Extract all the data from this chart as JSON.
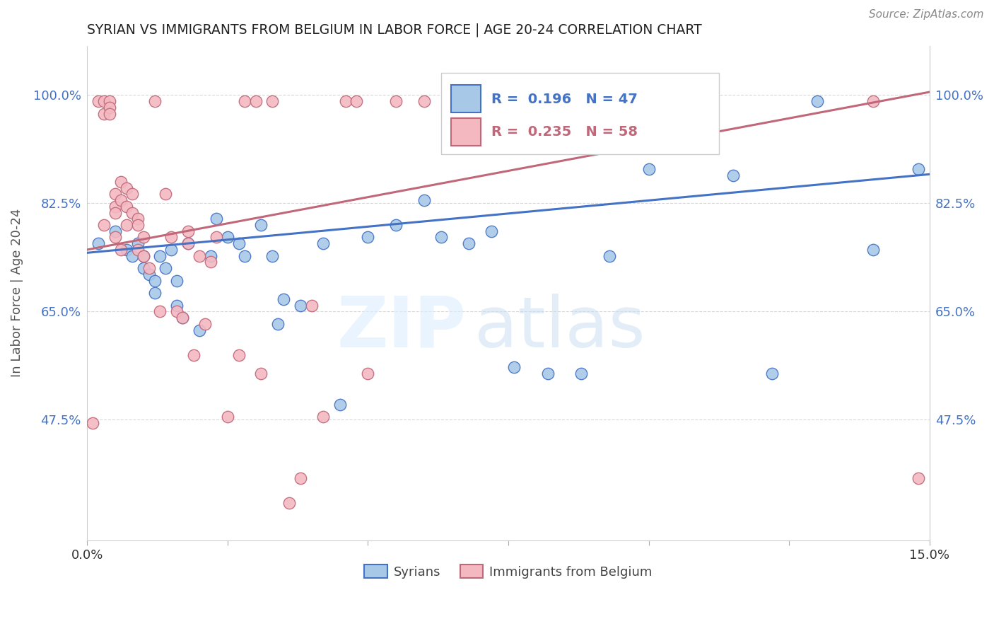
{
  "title": "SYRIAN VS IMMIGRANTS FROM BELGIUM IN LABOR FORCE | AGE 20-24 CORRELATION CHART",
  "source": "Source: ZipAtlas.com",
  "ylabel": "In Labor Force | Age 20-24",
  "xlim": [
    0.0,
    0.15
  ],
  "ylim": [
    0.28,
    1.08
  ],
  "yticks": [
    0.475,
    0.65,
    0.825,
    1.0
  ],
  "ytick_labels": [
    "47.5%",
    "65.0%",
    "82.5%",
    "100.0%"
  ],
  "xticks": [
    0.0,
    0.025,
    0.05,
    0.075,
    0.1,
    0.125,
    0.15
  ],
  "xtick_labels": [
    "0.0%",
    "",
    "",
    "",
    "",
    "",
    "15.0%"
  ],
  "blue_R": "R =  0.196",
  "blue_N": "N = 47",
  "pink_R": "R =  0.235",
  "pink_N": "N = 58",
  "blue_color": "#a8c8e8",
  "blue_edge_color": "#4472c4",
  "pink_color": "#f4b8c1",
  "pink_edge_color": "#c0687a",
  "blue_line_color": "#4472c4",
  "pink_line_color": "#c0687a",
  "legend_blue_label": "Syrians",
  "legend_pink_label": "Immigrants from Belgium",
  "blue_scatter_x": [
    0.002,
    0.005,
    0.007,
    0.008,
    0.009,
    0.01,
    0.01,
    0.011,
    0.012,
    0.012,
    0.013,
    0.014,
    0.015,
    0.016,
    0.016,
    0.017,
    0.018,
    0.02,
    0.022,
    0.023,
    0.025,
    0.027,
    0.028,
    0.031,
    0.033,
    0.034,
    0.035,
    0.038,
    0.042,
    0.045,
    0.05,
    0.055,
    0.06,
    0.063,
    0.068,
    0.072,
    0.076,
    0.082,
    0.088,
    0.093,
    0.1,
    0.107,
    0.115,
    0.122,
    0.13,
    0.14,
    0.148
  ],
  "blue_scatter_y": [
    0.76,
    0.78,
    0.75,
    0.74,
    0.76,
    0.74,
    0.72,
    0.71,
    0.7,
    0.68,
    0.74,
    0.72,
    0.75,
    0.7,
    0.66,
    0.64,
    0.76,
    0.62,
    0.74,
    0.8,
    0.77,
    0.76,
    0.74,
    0.79,
    0.74,
    0.63,
    0.67,
    0.66,
    0.76,
    0.5,
    0.77,
    0.79,
    0.83,
    0.77,
    0.76,
    0.78,
    0.56,
    0.55,
    0.55,
    0.74,
    0.88,
    0.98,
    0.87,
    0.55,
    0.99,
    0.75,
    0.88
  ],
  "pink_scatter_x": [
    0.001,
    0.002,
    0.003,
    0.003,
    0.003,
    0.004,
    0.004,
    0.004,
    0.005,
    0.005,
    0.005,
    0.005,
    0.006,
    0.006,
    0.006,
    0.007,
    0.007,
    0.007,
    0.008,
    0.008,
    0.009,
    0.009,
    0.009,
    0.01,
    0.01,
    0.011,
    0.012,
    0.013,
    0.014,
    0.015,
    0.016,
    0.017,
    0.018,
    0.018,
    0.019,
    0.02,
    0.021,
    0.022,
    0.023,
    0.025,
    0.027,
    0.028,
    0.03,
    0.031,
    0.033,
    0.036,
    0.038,
    0.04,
    0.042,
    0.046,
    0.048,
    0.05,
    0.055,
    0.06,
    0.065,
    0.07,
    0.14,
    0.148
  ],
  "pink_scatter_y": [
    0.47,
    0.99,
    0.99,
    0.97,
    0.79,
    0.99,
    0.98,
    0.97,
    0.84,
    0.82,
    0.81,
    0.77,
    0.86,
    0.83,
    0.75,
    0.85,
    0.82,
    0.79,
    0.84,
    0.81,
    0.8,
    0.79,
    0.75,
    0.77,
    0.74,
    0.72,
    0.99,
    0.65,
    0.84,
    0.77,
    0.65,
    0.64,
    0.78,
    0.76,
    0.58,
    0.74,
    0.63,
    0.73,
    0.77,
    0.48,
    0.58,
    0.99,
    0.99,
    0.55,
    0.99,
    0.34,
    0.38,
    0.66,
    0.48,
    0.99,
    0.99,
    0.55,
    0.99,
    0.99,
    0.99,
    0.99,
    0.99,
    0.38
  ],
  "blue_line_x0": 0.0,
  "blue_line_x1": 0.15,
  "blue_line_y0": 0.745,
  "blue_line_y1": 0.872,
  "pink_line_x0": 0.0,
  "pink_line_x1": 0.15,
  "pink_line_y0": 0.75,
  "pink_line_y1": 1.005,
  "watermark_part1": "ZIP",
  "watermark_part2": "atlas",
  "background_color": "#ffffff",
  "grid_color": "#d8d8d8"
}
